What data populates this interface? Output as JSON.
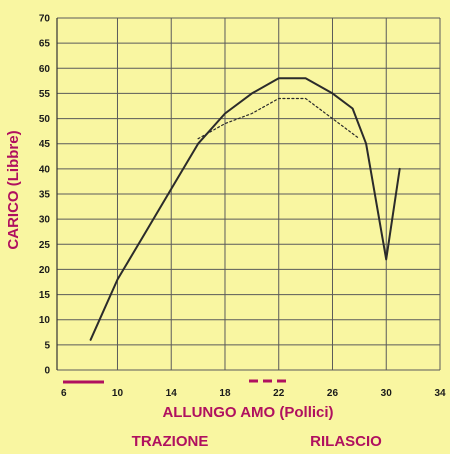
{
  "chart_data": {
    "type": "line",
    "title": "",
    "xlabel": "ALLUNGO AMO (Pollici)",
    "ylabel": "CARICO (Libbre)",
    "legend_labels": [
      "TRAZIONE",
      "RILASCIO"
    ],
    "xlim": [
      5.5,
      34
    ],
    "ylim": [
      0,
      70
    ],
    "x_ticks": [
      6,
      10,
      14,
      18,
      22,
      26,
      30,
      34
    ],
    "y_ticks": [
      0,
      5,
      10,
      15,
      20,
      25,
      30,
      35,
      40,
      45,
      50,
      55,
      60,
      65,
      70
    ],
    "grid": true,
    "series": [
      {
        "style": "solid",
        "x": [
          8,
          10,
          12,
          14,
          16,
          18,
          20,
          22,
          24,
          26,
          27.5,
          28.5,
          30,
          31
        ],
        "y": [
          6,
          18,
          27,
          36,
          45,
          51,
          55,
          58,
          58,
          55,
          52,
          45,
          22,
          40
        ]
      },
      {
        "style": "dotted",
        "x": [
          16,
          18,
          20,
          22,
          24,
          26,
          28
        ],
        "y": [
          46,
          49,
          51,
          54,
          54,
          50,
          46
        ]
      }
    ],
    "colors": {
      "background": "#f9f6a1",
      "grid": "#5a5a5a",
      "line": "#2b2b2b",
      "title": "#b0105f",
      "legend": "#b0105f"
    }
  }
}
